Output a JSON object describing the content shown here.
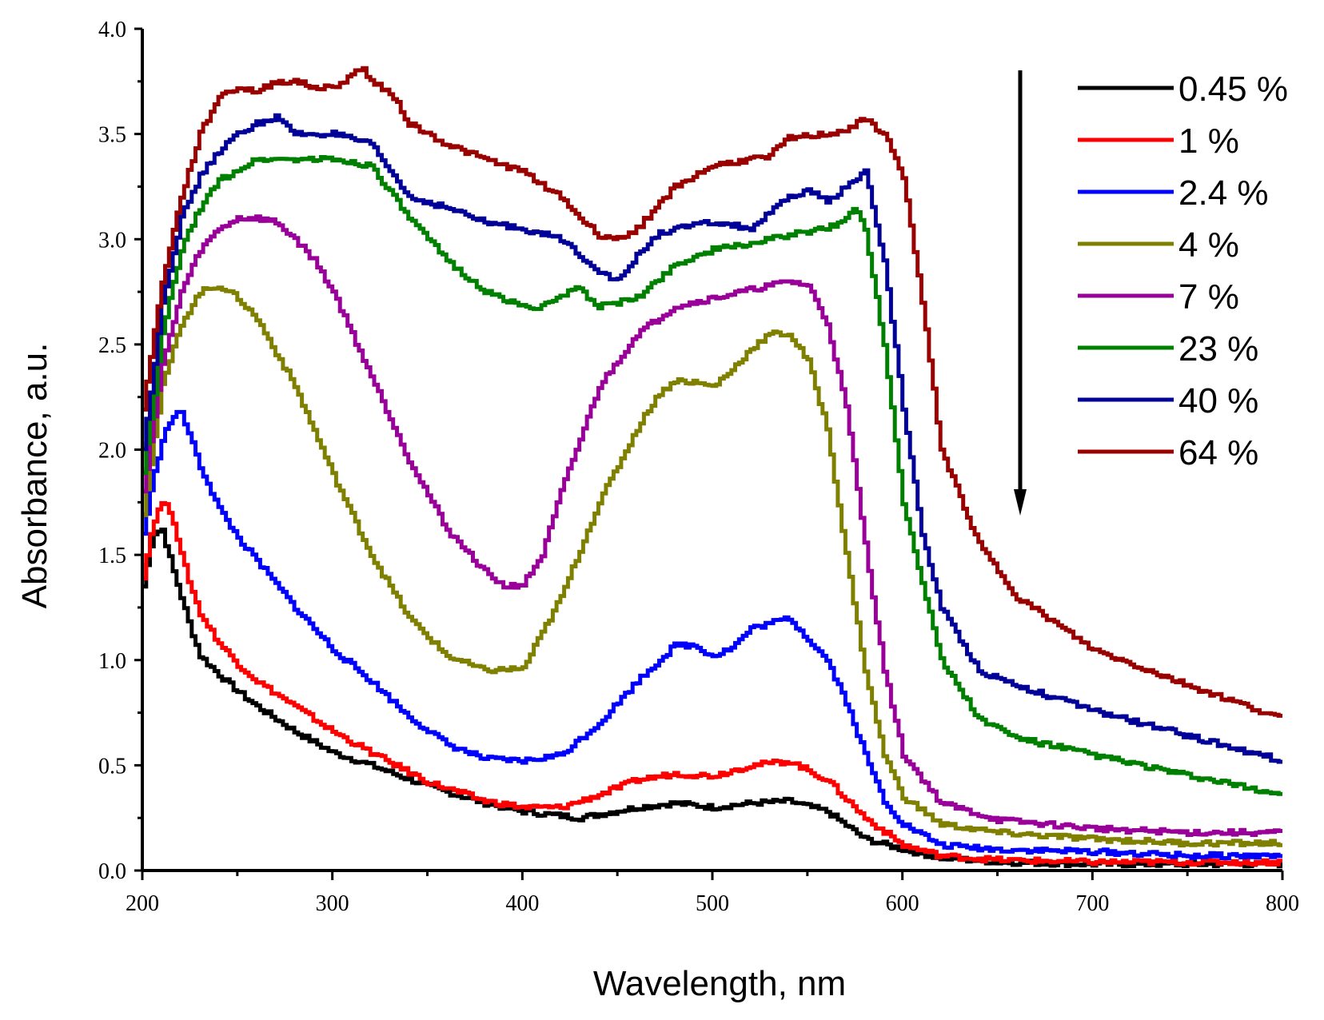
{
  "chart_data": {
    "type": "line",
    "title": "",
    "xlabel": "Wavelength, nm",
    "ylabel": "Absorbance, a.u.",
    "xlim": [
      200,
      800
    ],
    "ylim": [
      0.0,
      4.0
    ],
    "xticks": [
      200,
      300,
      400,
      500,
      600,
      700,
      800
    ],
    "xtick_labels": [
      "200",
      "300",
      "400",
      "500",
      "600",
      "700",
      "800"
    ],
    "yticks": [
      0.0,
      0.5,
      1.0,
      1.5,
      2.0,
      2.5,
      3.0,
      3.5,
      4.0
    ],
    "ytick_labels": [
      "0.0",
      "0.5",
      "1.0",
      "1.5",
      "2.0",
      "2.5",
      "3.0",
      "3.5",
      "4.0"
    ],
    "grid": false,
    "legend_position": "top-right",
    "annotation": "downward arrow next to the legend",
    "series": [
      {
        "name": "0.45 %",
        "color": "#000000",
        "x": [
          200,
          205,
          210,
          215,
          220,
          225,
          230,
          240,
          250,
          260,
          280,
          300,
          320,
          350,
          380,
          400,
          430,
          460,
          480,
          500,
          520,
          540,
          560,
          580,
          600,
          620,
          650,
          700,
          750,
          800
        ],
        "y": [
          1.35,
          1.6,
          1.62,
          1.45,
          1.3,
          1.15,
          1.02,
          0.93,
          0.85,
          0.78,
          0.66,
          0.56,
          0.5,
          0.4,
          0.32,
          0.28,
          0.25,
          0.3,
          0.32,
          0.3,
          0.32,
          0.33,
          0.28,
          0.15,
          0.1,
          0.06,
          0.04,
          0.03,
          0.03,
          0.03
        ]
      },
      {
        "name": "1 %",
        "color": "#ff0000",
        "x": [
          200,
          205,
          210,
          215,
          220,
          225,
          230,
          240,
          250,
          260,
          280,
          300,
          320,
          350,
          380,
          400,
          420,
          440,
          460,
          480,
          500,
          520,
          540,
          560,
          580,
          600,
          620,
          650,
          700,
          750,
          800
        ],
        "y": [
          1.4,
          1.65,
          1.75,
          1.7,
          1.5,
          1.35,
          1.22,
          1.08,
          0.98,
          0.9,
          0.78,
          0.66,
          0.56,
          0.42,
          0.33,
          0.3,
          0.3,
          0.36,
          0.43,
          0.46,
          0.45,
          0.5,
          0.52,
          0.43,
          0.25,
          0.12,
          0.07,
          0.05,
          0.04,
          0.04,
          0.04
        ]
      },
      {
        "name": "2.4 %",
        "color": "#0000ff",
        "x": [
          200,
          205,
          210,
          215,
          220,
          225,
          230,
          240,
          250,
          260,
          280,
          300,
          320,
          340,
          360,
          380,
          400,
          420,
          440,
          460,
          480,
          490,
          500,
          510,
          520,
          540,
          560,
          570,
          580,
          590,
          600,
          620,
          650,
          700,
          750,
          800
        ],
        "y": [
          1.6,
          1.85,
          2.05,
          2.15,
          2.18,
          2.05,
          1.92,
          1.72,
          1.58,
          1.47,
          1.25,
          1.05,
          0.9,
          0.73,
          0.6,
          0.53,
          0.52,
          0.55,
          0.7,
          0.9,
          1.07,
          1.07,
          1.02,
          1.06,
          1.15,
          1.2,
          1.0,
          0.8,
          0.55,
          0.33,
          0.22,
          0.12,
          0.1,
          0.09,
          0.07,
          0.07
        ]
      },
      {
        "name": "4 %",
        "color": "#808000",
        "x": [
          200,
          205,
          210,
          220,
          230,
          240,
          250,
          260,
          280,
          300,
          320,
          340,
          360,
          380,
          400,
          420,
          440,
          460,
          470,
          480,
          490,
          500,
          510,
          520,
          530,
          540,
          550,
          560,
          570,
          580,
          590,
          600,
          620,
          650,
          700,
          750,
          800
        ],
        "y": [
          1.7,
          2.0,
          2.3,
          2.6,
          2.75,
          2.78,
          2.72,
          2.62,
          2.3,
          1.88,
          1.5,
          1.2,
          1.02,
          0.95,
          0.96,
          1.3,
          1.75,
          2.1,
          2.25,
          2.33,
          2.32,
          2.3,
          2.38,
          2.48,
          2.55,
          2.55,
          2.42,
          2.1,
          1.5,
          0.95,
          0.55,
          0.35,
          0.22,
          0.18,
          0.15,
          0.13,
          0.13
        ]
      },
      {
        "name": "7 %",
        "color": "#990099",
        "x": [
          200,
          205,
          210,
          220,
          230,
          240,
          250,
          260,
          270,
          280,
          290,
          300,
          320,
          340,
          360,
          380,
          390,
          400,
          410,
          420,
          440,
          460,
          480,
          500,
          520,
          540,
          550,
          560,
          570,
          580,
          590,
          600,
          620,
          650,
          700,
          750,
          800
        ],
        "y": [
          1.8,
          2.1,
          2.4,
          2.75,
          2.95,
          3.05,
          3.1,
          3.1,
          3.08,
          3.0,
          2.9,
          2.75,
          2.35,
          1.95,
          1.62,
          1.42,
          1.35,
          1.36,
          1.5,
          1.8,
          2.3,
          2.55,
          2.68,
          2.72,
          2.76,
          2.8,
          2.78,
          2.6,
          2.2,
          1.55,
          0.95,
          0.55,
          0.32,
          0.24,
          0.2,
          0.18,
          0.18
        ]
      },
      {
        "name": "23 %",
        "color": "#008000",
        "x": [
          200,
          205,
          210,
          220,
          230,
          240,
          250,
          260,
          280,
          300,
          320,
          340,
          360,
          380,
          400,
          410,
          420,
          425,
          430,
          440,
          460,
          470,
          480,
          500,
          520,
          540,
          560,
          570,
          575,
          580,
          590,
          600,
          620,
          640,
          660,
          700,
          750,
          800
        ],
        "y": [
          1.9,
          2.2,
          2.55,
          2.95,
          3.15,
          3.28,
          3.33,
          3.38,
          3.38,
          3.38,
          3.35,
          3.1,
          2.9,
          2.75,
          2.68,
          2.68,
          2.72,
          2.77,
          2.76,
          2.68,
          2.72,
          2.8,
          2.88,
          2.95,
          2.98,
          3.02,
          3.05,
          3.1,
          3.15,
          3.05,
          2.5,
          1.75,
          1.0,
          0.72,
          0.63,
          0.55,
          0.45,
          0.36
        ]
      },
      {
        "name": "40 %",
        "color": "#000099",
        "x": [
          200,
          205,
          210,
          220,
          230,
          240,
          250,
          260,
          270,
          280,
          300,
          320,
          340,
          360,
          380,
          400,
          420,
          440,
          450,
          460,
          470,
          480,
          500,
          520,
          540,
          550,
          560,
          570,
          580,
          590,
          600,
          610,
          620,
          640,
          660,
          700,
          750,
          800
        ],
        "y": [
          2.0,
          2.35,
          2.7,
          3.1,
          3.3,
          3.42,
          3.5,
          3.55,
          3.58,
          3.5,
          3.5,
          3.45,
          3.2,
          3.15,
          3.08,
          3.05,
          3.0,
          2.85,
          2.8,
          2.92,
          3.02,
          3.05,
          3.08,
          3.05,
          3.2,
          3.23,
          3.18,
          3.25,
          3.32,
          2.9,
          2.2,
          1.6,
          1.25,
          0.95,
          0.88,
          0.76,
          0.64,
          0.52
        ]
      },
      {
        "name": "64 %",
        "color": "#990000",
        "x": [
          200,
          205,
          210,
          220,
          230,
          240,
          250,
          260,
          270,
          280,
          290,
          300,
          310,
          315,
          320,
          330,
          340,
          360,
          380,
          400,
          420,
          430,
          440,
          450,
          460,
          470,
          480,
          500,
          520,
          530,
          540,
          560,
          570,
          580,
          590,
          600,
          610,
          620,
          640,
          660,
          700,
          750,
          800
        ],
        "y": [
          2.2,
          2.5,
          2.8,
          3.2,
          3.5,
          3.68,
          3.72,
          3.7,
          3.75,
          3.75,
          3.72,
          3.72,
          3.78,
          3.82,
          3.75,
          3.7,
          3.55,
          3.45,
          3.38,
          3.32,
          3.2,
          3.1,
          3.02,
          3.0,
          3.05,
          3.15,
          3.25,
          3.35,
          3.38,
          3.4,
          3.48,
          3.5,
          3.52,
          3.57,
          3.5,
          3.3,
          2.7,
          2.0,
          1.55,
          1.3,
          1.05,
          0.88,
          0.72
        ]
      }
    ]
  }
}
